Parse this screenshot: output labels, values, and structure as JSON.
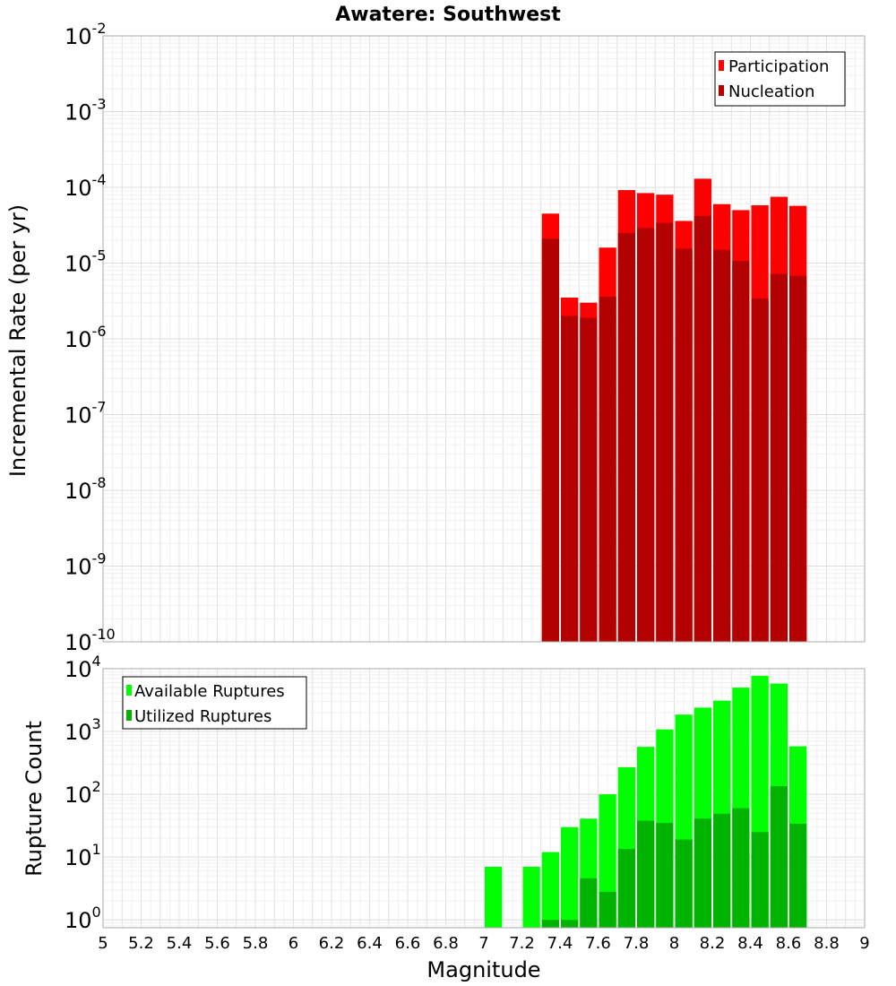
{
  "chart_data": [
    {
      "type": "bar",
      "title": "Awatere: Southwest",
      "ylabel": "Incremental Rate (per yr)",
      "xlabel": "",
      "yscale": "log",
      "ylim": [
        1e-10,
        0.01
      ],
      "xlim": [
        5,
        9
      ],
      "grid": true,
      "legend_position": "top-right",
      "yticks": [
        {
          "base": "10",
          "exp": "-10",
          "value": 1e-10
        },
        {
          "base": "10",
          "exp": "-9",
          "value": 1e-09
        },
        {
          "base": "10",
          "exp": "-8",
          "value": 1e-08
        },
        {
          "base": "10",
          "exp": "-7",
          "value": 1e-07
        },
        {
          "base": "10",
          "exp": "-6",
          "value": 1e-06
        },
        {
          "base": "10",
          "exp": "-5",
          "value": 1e-05
        },
        {
          "base": "10",
          "exp": "-4",
          "value": 0.0001
        },
        {
          "base": "10",
          "exp": "-3",
          "value": 0.001
        },
        {
          "base": "10",
          "exp": "-2",
          "value": 0.01
        }
      ],
      "x": [
        7.35,
        7.45,
        7.55,
        7.65,
        7.75,
        7.85,
        7.95,
        8.05,
        8.15,
        8.25,
        8.35,
        8.45,
        8.55,
        8.65
      ],
      "series": [
        {
          "name": "Participation",
          "color": "#ff0000",
          "values": [
            4.5e-05,
            3.5e-06,
            3e-06,
            1.6e-05,
            9.2e-05,
            8.4e-05,
            8e-05,
            3.6e-05,
            0.00013,
            6e-05,
            5e-05,
            5.8e-05,
            7.5e-05,
            5.7e-05
          ]
        },
        {
          "name": "Nucleation",
          "color": "#b30000",
          "values": [
            2.1e-05,
            2e-06,
            1.9e-06,
            3.6e-06,
            2.5e-05,
            2.9e-05,
            3.4e-05,
            1.55e-05,
            4.2e-05,
            1.5e-05,
            1.07e-05,
            3.4e-06,
            7.2e-06,
            6.8e-06
          ]
        }
      ]
    },
    {
      "type": "bar",
      "title": "",
      "ylabel": "Rupture Count",
      "xlabel": "Magnitude",
      "yscale": "log",
      "ylim": [
        0.75,
        10000
      ],
      "xlim": [
        5,
        9
      ],
      "grid": true,
      "legend_position": "top-left",
      "yticks": [
        {
          "base": "10",
          "exp": "0",
          "value": 1
        },
        {
          "base": "10",
          "exp": "1",
          "value": 10
        },
        {
          "base": "10",
          "exp": "2",
          "value": 100
        },
        {
          "base": "10",
          "exp": "3",
          "value": 1000
        },
        {
          "base": "10",
          "exp": "4",
          "value": 10000
        }
      ],
      "xticks": [
        "5",
        "5.2",
        "5.4",
        "5.6",
        "5.8",
        "6",
        "6.2",
        "6.4",
        "6.6",
        "6.8",
        "7",
        "7.2",
        "7.4",
        "7.6",
        "7.8",
        "8",
        "8.2",
        "8.4",
        "8.6",
        "8.8",
        "9"
      ],
      "x": [
        7.05,
        7.15,
        7.25,
        7.35,
        7.45,
        7.55,
        7.65,
        7.75,
        7.85,
        7.95,
        8.05,
        8.15,
        8.25,
        8.35,
        8.45,
        8.55,
        8.65
      ],
      "series": [
        {
          "name": "Available Ruptures",
          "color": "#00ff00",
          "values": [
            7,
            null,
            7,
            12,
            30,
            41,
            100,
            270,
            570,
            1080,
            1860,
            2400,
            3100,
            5000,
            7700,
            5800,
            580
          ]
        },
        {
          "name": "Utilized Ruptures",
          "color": "#00b300",
          "values": [
            null,
            null,
            null,
            1,
            1,
            4.6,
            2.8,
            13.5,
            38,
            35,
            19,
            41,
            49,
            60,
            25,
            135,
            34
          ]
        }
      ]
    }
  ]
}
